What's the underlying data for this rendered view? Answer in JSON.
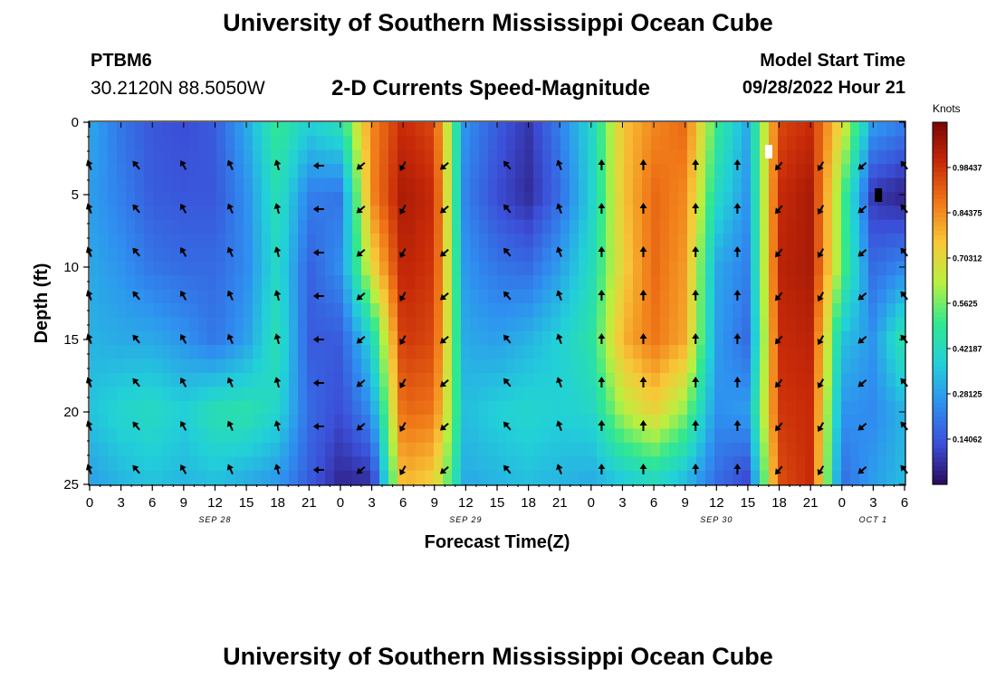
{
  "header": {
    "title": "University of Southern Mississippi Ocean Cube",
    "station_id": "PTBM6",
    "coordinates": "30.2120N  88.5050W",
    "subtitle": "2-D Currents Speed-Magnitude",
    "model_start_label": "Model Start Time",
    "model_start_value": "09/28/2022 Hour 21"
  },
  "footer": {
    "title": "University of Southern Mississippi Ocean Cube"
  },
  "colors": {
    "scale": [
      "#2a0a5c",
      "#3b4fd8",
      "#2f8ff0",
      "#22d0d8",
      "#30e890",
      "#b8f040",
      "#f8c838",
      "#f07818",
      "#c82a08",
      "#7a0605"
    ],
    "arrow": "#000000"
  },
  "chart_data": {
    "type": "heatmap",
    "title": "2-D Currents Speed-Magnitude",
    "xlabel": "Forecast Time(Z)",
    "ylabel": "Depth (ft)",
    "x_tick_labels": [
      "0",
      "3",
      "6",
      "9",
      "12",
      "15",
      "18",
      "21",
      "0",
      "3",
      "6",
      "9",
      "12",
      "15",
      "18",
      "21",
      "0",
      "3",
      "6",
      "9",
      "12",
      "15",
      "18",
      "21",
      "0",
      "3",
      "6"
    ],
    "date_labels": [
      {
        "label": "SEP 28",
        "hour": 12
      },
      {
        "label": "SEP 29",
        "hour": 36
      },
      {
        "label": "SEP 30",
        "hour": 60
      },
      {
        "label": "OCT 1",
        "hour": 75
      }
    ],
    "x_range_hours": [
      0,
      78
    ],
    "y_ticks": [
      0,
      5,
      10,
      15,
      20,
      25
    ],
    "y_range_ft": [
      0,
      25
    ],
    "colorbar": {
      "unit": "Knots",
      "range": [
        0,
        1.125
      ],
      "tick_values": [
        0.14062,
        0.28125,
        0.42187,
        0.5625,
        0.70312,
        0.84375,
        0.98437
      ],
      "tick_labels": [
        "0.14062",
        "0.28125",
        "0.42187",
        "0.5625",
        "0.70312",
        "0.84375",
        "0.98437"
      ]
    },
    "speed_knots": {
      "hours": [
        0,
        3,
        6,
        9,
        12,
        15,
        18,
        21,
        24,
        27,
        30,
        33,
        36,
        39,
        42,
        45,
        48,
        51,
        54,
        57,
        60,
        63,
        66,
        69,
        72,
        75,
        78
      ],
      "depths_ft": [
        0,
        5,
        10,
        15,
        20,
        25
      ],
      "values": [
        [
          0.3,
          0.2,
          0.14,
          0.12,
          0.15,
          0.3,
          0.5,
          0.38,
          0.45,
          0.85,
          1.0,
          0.95,
          0.25,
          0.15,
          0.08,
          0.22,
          0.4,
          0.75,
          0.85,
          0.9,
          0.5,
          0.3,
          0.95,
          1.0,
          0.7,
          0.28,
          0.22
        ],
        [
          0.28,
          0.22,
          0.15,
          0.14,
          0.14,
          0.25,
          0.45,
          0.22,
          0.2,
          0.85,
          1.05,
          1.0,
          0.22,
          0.12,
          0.06,
          0.18,
          0.38,
          0.75,
          0.9,
          0.85,
          0.42,
          0.26,
          1.0,
          1.05,
          0.55,
          0.08,
          0.04
        ],
        [
          0.3,
          0.26,
          0.2,
          0.18,
          0.18,
          0.24,
          0.42,
          0.16,
          0.25,
          0.7,
          1.02,
          0.98,
          0.26,
          0.2,
          0.18,
          0.28,
          0.42,
          0.72,
          0.9,
          0.82,
          0.3,
          0.22,
          1.02,
          1.05,
          0.55,
          0.18,
          0.24
        ],
        [
          0.32,
          0.3,
          0.3,
          0.26,
          0.2,
          0.28,
          0.45,
          0.15,
          0.15,
          0.4,
          0.98,
          0.95,
          0.3,
          0.28,
          0.32,
          0.38,
          0.46,
          0.78,
          0.88,
          0.8,
          0.28,
          0.18,
          1.0,
          1.02,
          0.35,
          0.26,
          0.48
        ],
        [
          0.35,
          0.4,
          0.42,
          0.38,
          0.45,
          0.46,
          0.4,
          0.18,
          0.12,
          0.25,
          0.9,
          0.88,
          0.34,
          0.38,
          0.4,
          0.38,
          0.4,
          0.62,
          0.72,
          0.58,
          0.25,
          0.28,
          0.98,
          1.0,
          0.26,
          0.24,
          0.32
        ],
        [
          0.28,
          0.32,
          0.35,
          0.32,
          0.34,
          0.3,
          0.26,
          0.15,
          0.05,
          0.06,
          0.78,
          0.72,
          0.3,
          0.32,
          0.34,
          0.32,
          0.3,
          0.35,
          0.4,
          0.32,
          0.18,
          0.1,
          0.94,
          1.0,
          0.18,
          0.28,
          0.34
        ]
      ]
    },
    "arrows": {
      "hours": [
        0,
        4.5,
        9,
        13.5,
        18,
        22,
        26,
        30,
        34,
        40,
        45,
        49,
        53,
        58,
        62,
        66,
        70,
        74,
        78
      ],
      "depths_ft": [
        3,
        6,
        9,
        12,
        15,
        18,
        21,
        24
      ],
      "direction_deg_by_hour": [
        -20,
        -40,
        -30,
        -25,
        -15,
        -90,
        -130,
        -150,
        -130,
        -40,
        -20,
        0,
        0,
        0,
        0,
        -140,
        -150,
        -130,
        -40
      ]
    },
    "markers": [
      {
        "hour": 65,
        "depth_ft": 2,
        "color": "#ffffff"
      },
      {
        "hour": 75.5,
        "depth_ft": 5,
        "color": "#000000"
      }
    ]
  }
}
